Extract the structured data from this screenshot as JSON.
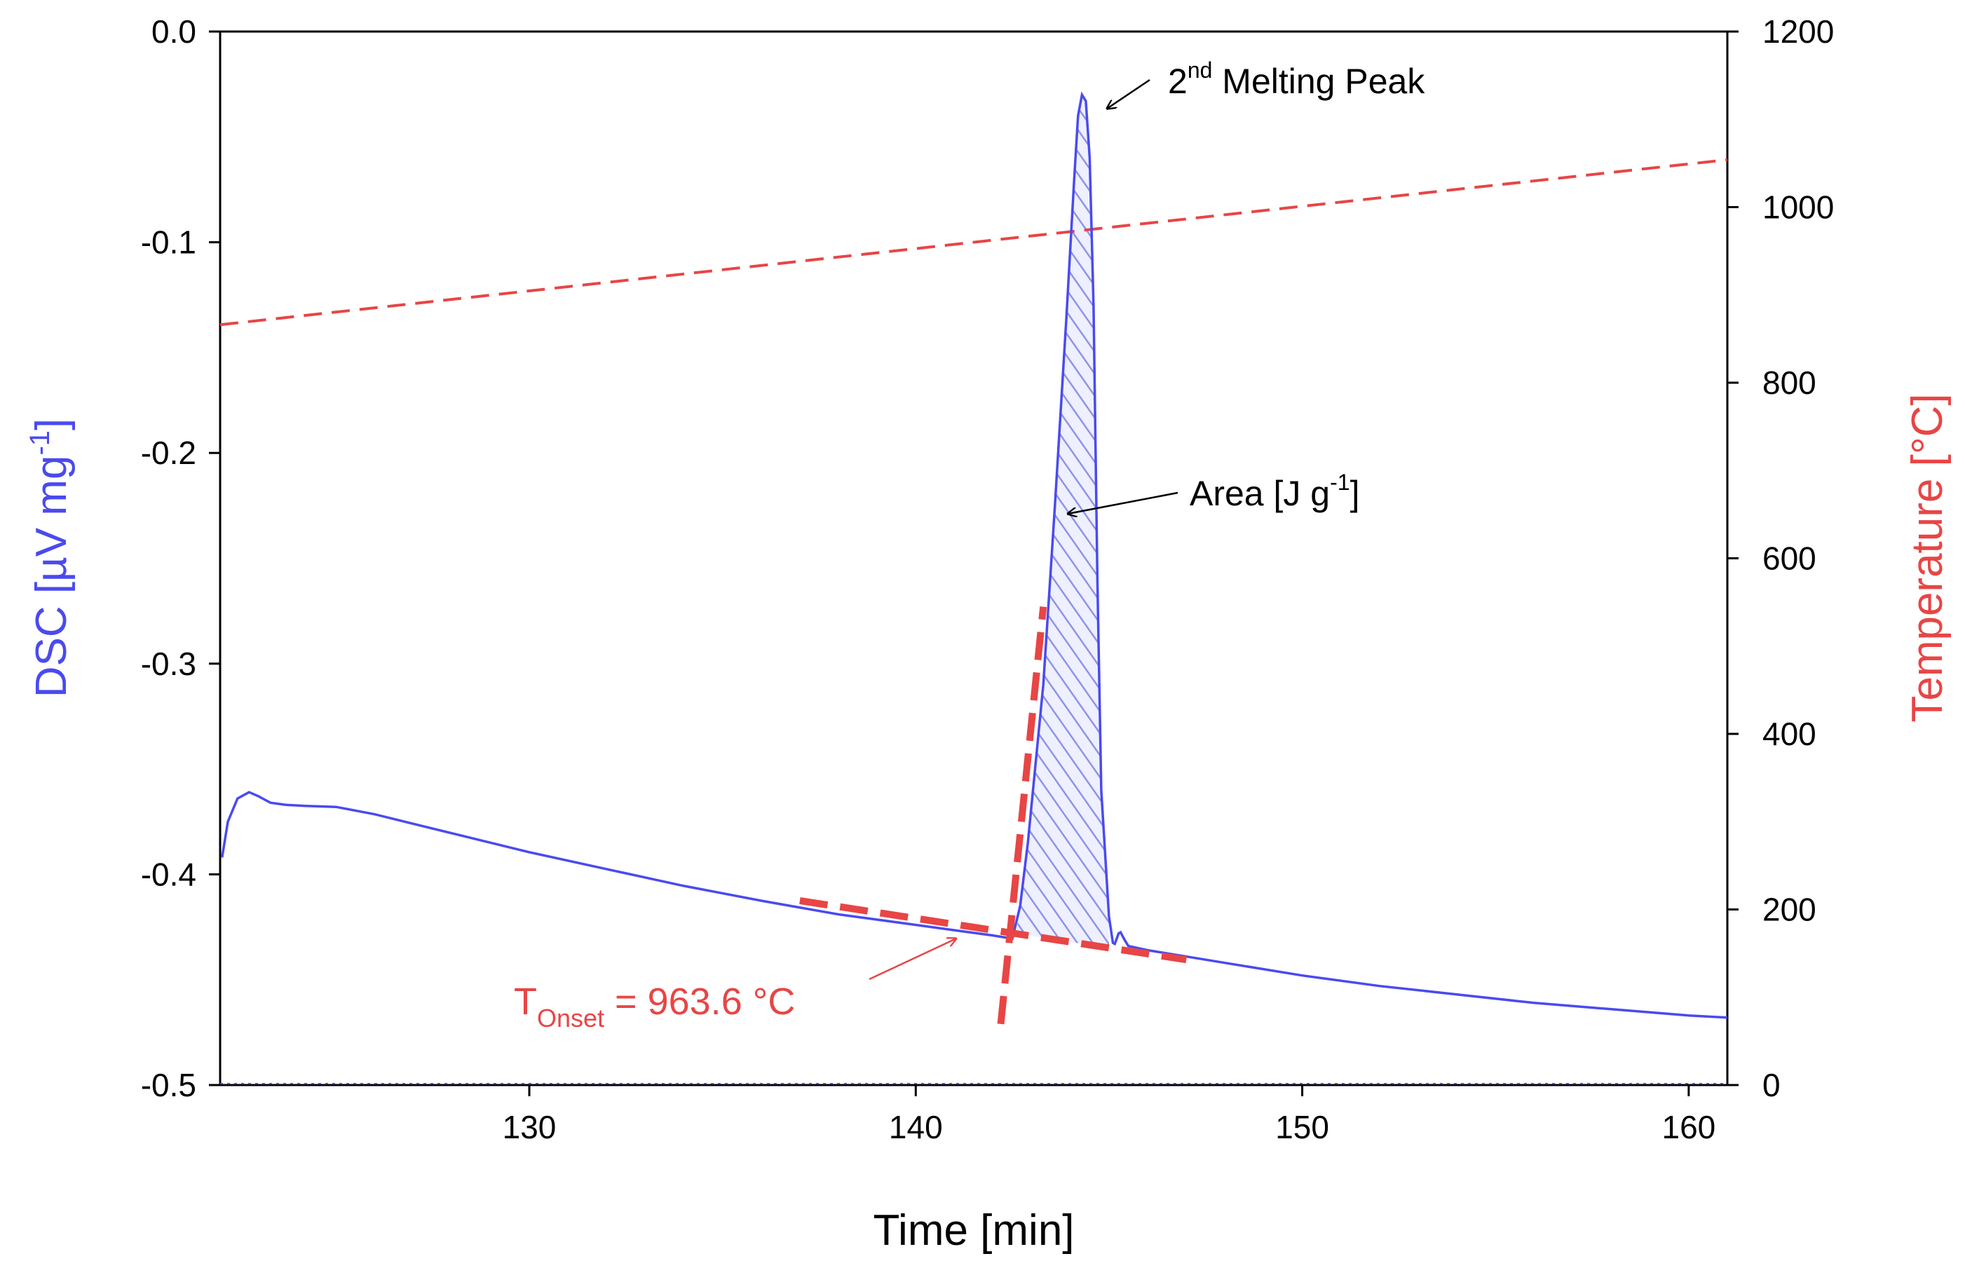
{
  "chart_data": {
    "type": "line",
    "x_axis": {
      "label": "Time [min]",
      "range": [
        122,
        161
      ],
      "ticks": [
        130,
        140,
        150,
        160
      ],
      "tick_labels": [
        "130",
        "140",
        "150",
        "160"
      ]
    },
    "y_left_axis": {
      "label": "DSC [µV mg⁻¹]",
      "label_base": "DSC [µV mg",
      "label_exp": "-1",
      "label_close": "]",
      "range": [
        -0.5,
        0.0
      ],
      "ticks": [
        0.0,
        -0.1,
        -0.2,
        -0.3,
        -0.4,
        -0.5
      ],
      "tick_labels": [
        "0.0",
        "-0.1",
        "-0.2",
        "-0.3",
        "-0.4",
        "-0.5"
      ],
      "color": "#4a4af0"
    },
    "y_right_axis": {
      "label": "Temperature [°C]",
      "range": [
        0,
        1200
      ],
      "ticks": [
        0,
        200,
        400,
        600,
        800,
        1000,
        1200
      ],
      "tick_labels": [
        "0",
        "200",
        "400",
        "600",
        "800",
        "1000",
        "1200"
      ],
      "color": "#e84545"
    },
    "series": [
      {
        "name": "DSC",
        "axis": "left",
        "color": "#4a4af0",
        "x": [
          122.05,
          122.2,
          122.45,
          122.75,
          123.0,
          123.3,
          123.7,
          124.2,
          125.0,
          126.0,
          127.0,
          128.0,
          129.0,
          130.0,
          132.0,
          134.0,
          136.0,
          138.0,
          140.0,
          141.0,
          142.0,
          142.5,
          142.7,
          142.9,
          143.3,
          143.6,
          143.9,
          144.1,
          144.2,
          144.3,
          144.4,
          144.5,
          144.6,
          144.7,
          144.8,
          145.0,
          145.1,
          145.15,
          145.25,
          145.3,
          145.4,
          145.5,
          146.0,
          148.0,
          150.0,
          152.0,
          154.0,
          156.0,
          158.0,
          160.0,
          161.0
        ],
        "y": [
          -0.392,
          -0.375,
          -0.364,
          -0.361,
          -0.363,
          -0.366,
          -0.367,
          -0.3675,
          -0.368,
          -0.3715,
          -0.376,
          -0.3805,
          -0.385,
          -0.3895,
          -0.3975,
          -0.4055,
          -0.4125,
          -0.419,
          -0.424,
          -0.4265,
          -0.429,
          -0.4305,
          -0.415,
          -0.385,
          -0.31,
          -0.225,
          -0.135,
          -0.07,
          -0.04,
          -0.03,
          -0.033,
          -0.06,
          -0.13,
          -0.26,
          -0.36,
          -0.42,
          -0.4325,
          -0.433,
          -0.428,
          -0.4275,
          -0.431,
          -0.434,
          -0.436,
          -0.442,
          -0.448,
          -0.453,
          -0.457,
          -0.461,
          -0.464,
          -0.467,
          -0.468
        ]
      },
      {
        "name": "Temperature",
        "axis": "right",
        "color": "#e84545",
        "style": "dashed",
        "x": [
          122,
          161
        ],
        "y": [
          866,
          1054
        ]
      },
      {
        "name": "Baseline tangent",
        "axis": "left",
        "color": "#e84545",
        "style": "bold-dashed",
        "x": [
          137.0,
          147.0
        ],
        "y": [
          -0.4125,
          -0.4405
        ]
      },
      {
        "name": "Leading edge tangent",
        "axis": "left",
        "color": "#e84545",
        "style": "bold-dashed",
        "x": [
          142.2,
          143.3
        ],
        "y": [
          -0.471,
          -0.273
        ]
      }
    ],
    "shaded_region": {
      "name": "Peak area",
      "pattern": "diagonal-hatch",
      "color": "#4a4af0",
      "x_start": 142.6,
      "x_end": 145.0
    },
    "annotations": {
      "peak": {
        "prefix": "2",
        "sup": "nd",
        "rest": " Melting Peak",
        "x": 144.35,
        "y": -0.03
      },
      "area": {
        "text_base": "Area [J g",
        "text_exp": "-1",
        "text_close": "]",
        "x": 143.9,
        "y": -0.23
      },
      "onset": {
        "T": "T",
        "sub": "Onset",
        "value_text": " =  963.6 °C",
        "x": 141.1,
        "y": -0.432
      }
    }
  }
}
